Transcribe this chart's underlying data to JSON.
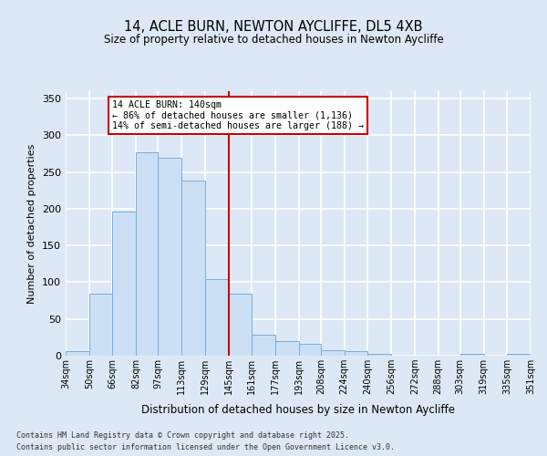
{
  "title": "14, ACLE BURN, NEWTON AYCLIFFE, DL5 4XB",
  "subtitle": "Size of property relative to detached houses in Newton Aycliffe",
  "xlabel": "Distribution of detached houses by size in Newton Aycliffe",
  "ylabel": "Number of detached properties",
  "bar_edges": [
    34,
    50,
    66,
    82,
    97,
    113,
    129,
    145,
    161,
    177,
    193,
    208,
    224,
    240,
    256,
    272,
    288,
    303,
    319,
    335,
    351
  ],
  "bar_heights": [
    6,
    84,
    196,
    277,
    270,
    238,
    104,
    84,
    28,
    20,
    16,
    7,
    6,
    3,
    0,
    0,
    0,
    2,
    0,
    2
  ],
  "bar_color": "#cce0f5",
  "bar_edge_color": "#7aaed6",
  "reference_line_x": 145,
  "reference_line_color": "#cc0000",
  "annotation_text": "14 ACLE BURN: 140sqm\n← 86% of detached houses are smaller (1,136)\n14% of semi-detached houses are larger (188) →",
  "annotation_box_color": "#ffffff",
  "annotation_box_edge_color": "#cc0000",
  "ylim": [
    0,
    360
  ],
  "yticks": [
    0,
    50,
    100,
    150,
    200,
    250,
    300,
    350
  ],
  "background_color": "#dce8f5",
  "plot_bg_color": "#dce8f5",
  "grid_color": "#ffffff",
  "footer_line1": "Contains HM Land Registry data © Crown copyright and database right 2025.",
  "footer_line2": "Contains public sector information licensed under the Open Government Licence v3.0."
}
